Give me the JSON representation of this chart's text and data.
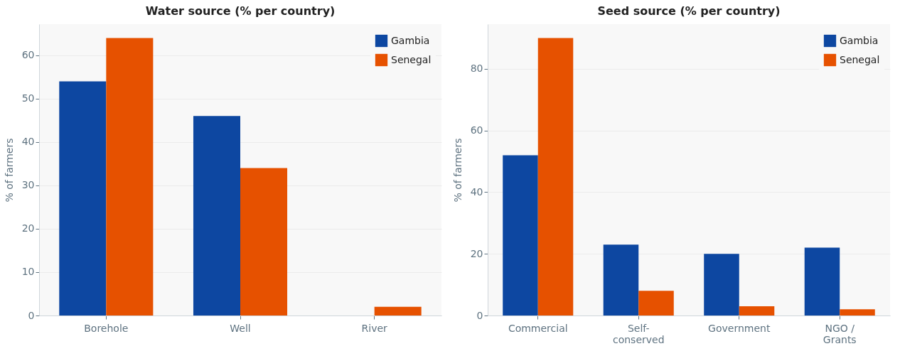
{
  "chart_data": [
    {
      "type": "bar",
      "title": "Water source (% per country)",
      "ylabel": "% of farmers",
      "categories": [
        "Borehole",
        "Well",
        "River"
      ],
      "series": [
        {
          "name": "Gambia",
          "color": "#0d47a1",
          "values": [
            54,
            46,
            0
          ]
        },
        {
          "name": "Senegal",
          "color": "#e65100",
          "values": [
            64,
            34,
            2
          ]
        }
      ],
      "ylim": [
        0,
        67.2
      ],
      "yticks": [
        0,
        10,
        20,
        30,
        40,
        50,
        60
      ],
      "grid": "y",
      "legend": "top right"
    },
    {
      "type": "bar",
      "title": "Seed source (% per country)",
      "ylabel": "% of farmers",
      "categories": [
        "Commercial",
        "Self-\nconserved",
        "Government",
        "NGO /\nGrants"
      ],
      "series": [
        {
          "name": "Gambia",
          "color": "#0d47a1",
          "values": [
            52,
            23,
            20,
            22
          ]
        },
        {
          "name": "Senegal",
          "color": "#e65100",
          "values": [
            90,
            8,
            3,
            2
          ]
        }
      ],
      "ylim": [
        0,
        94.5
      ],
      "yticks": [
        0,
        20,
        40,
        60,
        80
      ],
      "grid": "y",
      "legend": "top right"
    }
  ]
}
